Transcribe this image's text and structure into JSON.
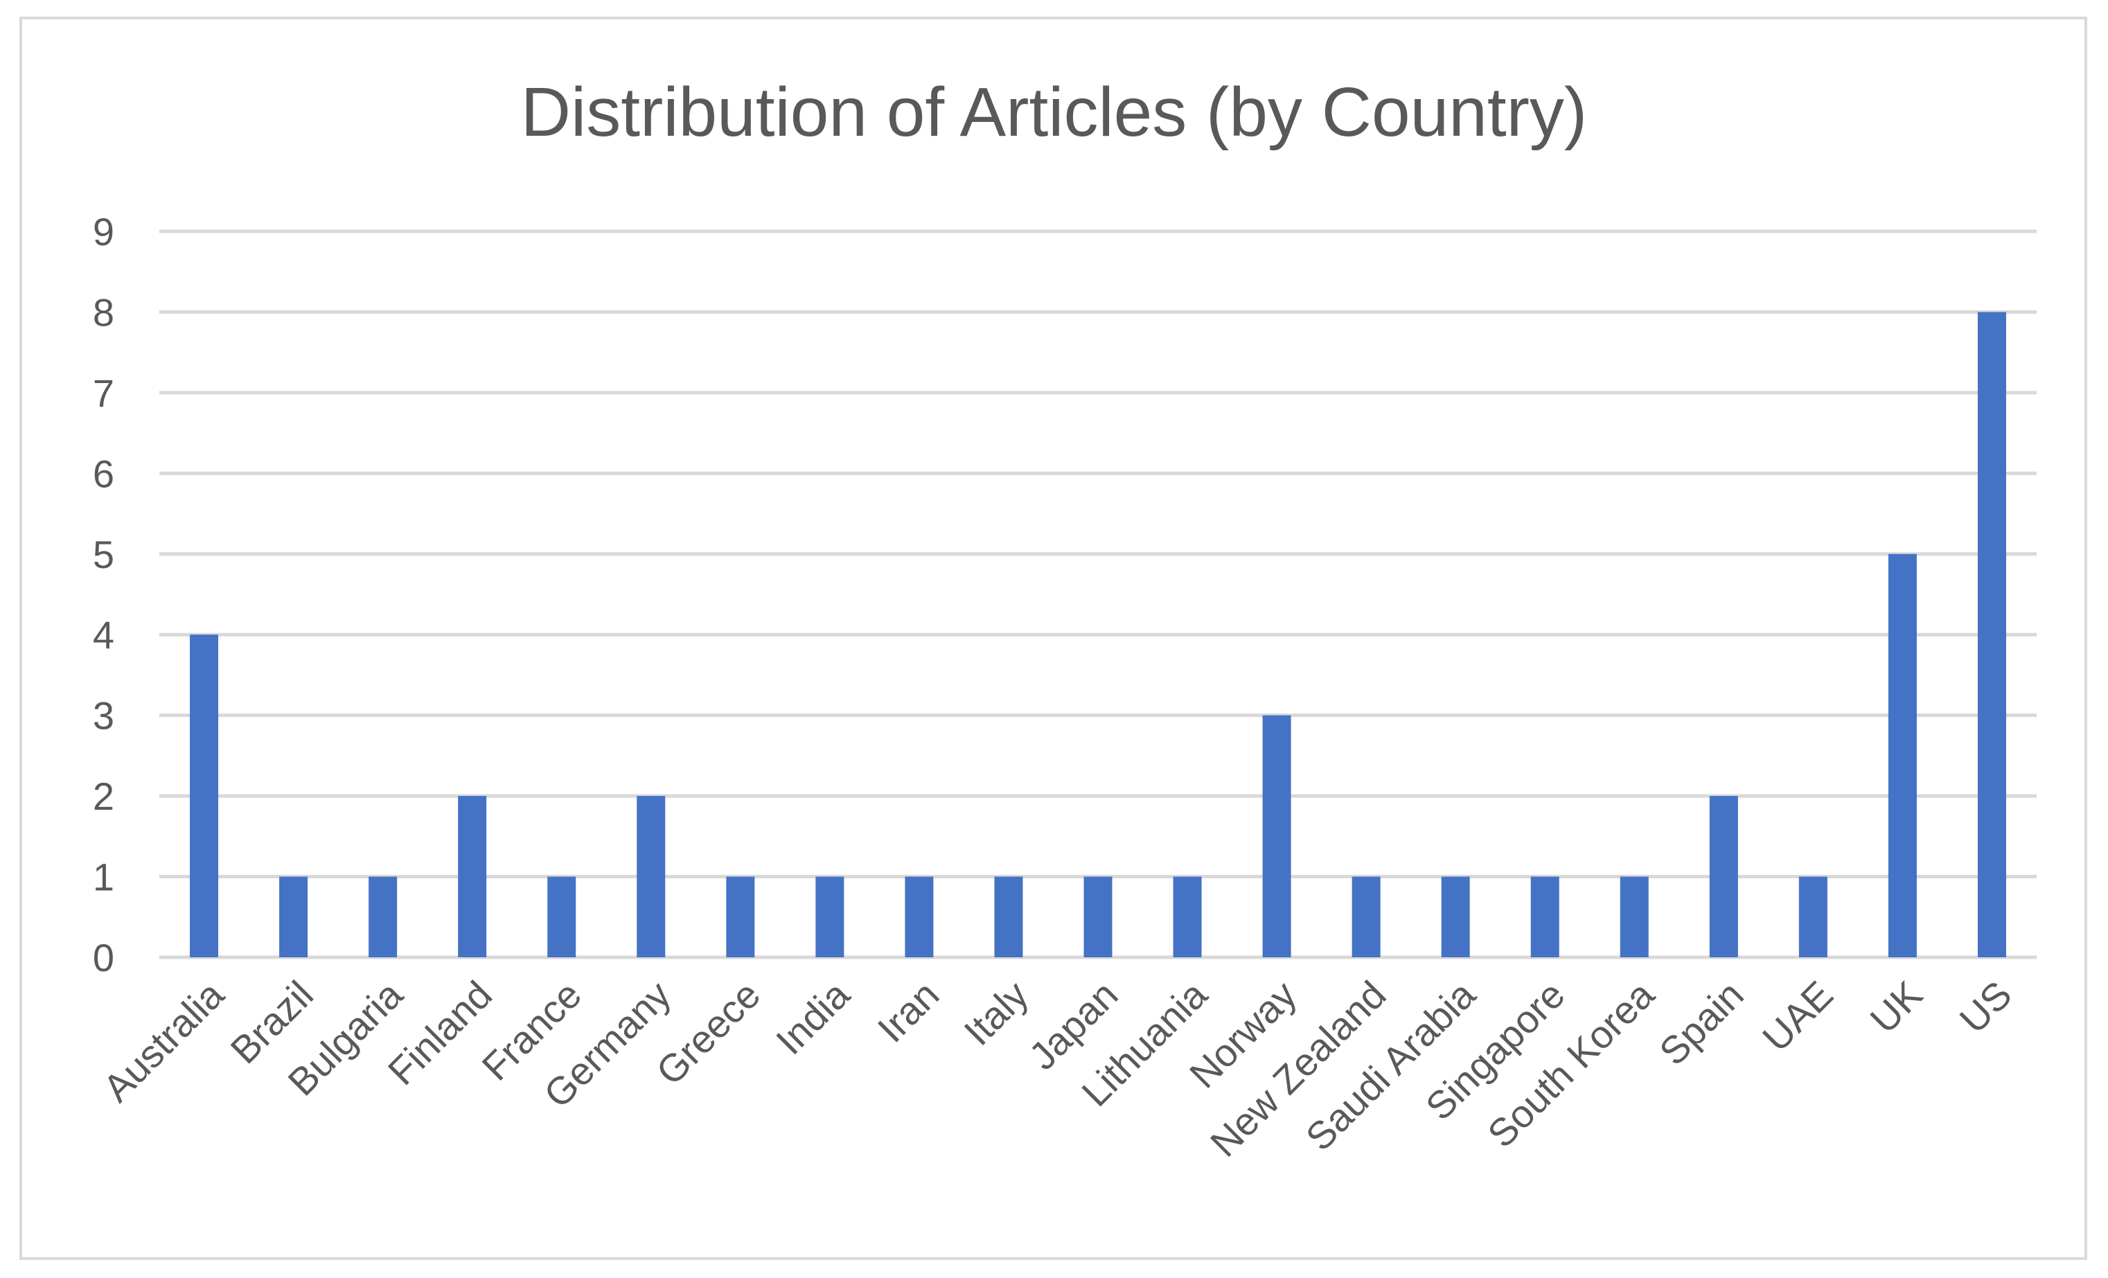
{
  "chart_data": {
    "type": "bar",
    "title": "Distribution of Articles (by Country)",
    "xlabel": "",
    "ylabel": "",
    "categories": [
      "Australia",
      "Brazil",
      "Bulgaria",
      "Finland",
      "France",
      "Germany",
      "Greece",
      "India",
      "Iran",
      "Italy",
      "Japan",
      "Lithuania",
      "Norway",
      "New Zealand",
      "Saudi Arabia",
      "Singapore",
      "South Korea",
      "Spain",
      "UAE",
      "UK",
      "US"
    ],
    "values": [
      4,
      1,
      1,
      2,
      1,
      2,
      1,
      1,
      1,
      1,
      1,
      1,
      3,
      1,
      1,
      1,
      1,
      2,
      1,
      5,
      8
    ],
    "ylim": [
      0,
      9
    ],
    "yticks": [
      "0",
      "1",
      "2",
      "3",
      "4",
      "5",
      "6",
      "7",
      "8",
      "9"
    ],
    "grid": true,
    "legend": "none",
    "colors": {
      "bar": "#4472c4",
      "grid": "#d9d9d9",
      "text": "#595959",
      "frame": "#d9d9d9"
    }
  }
}
